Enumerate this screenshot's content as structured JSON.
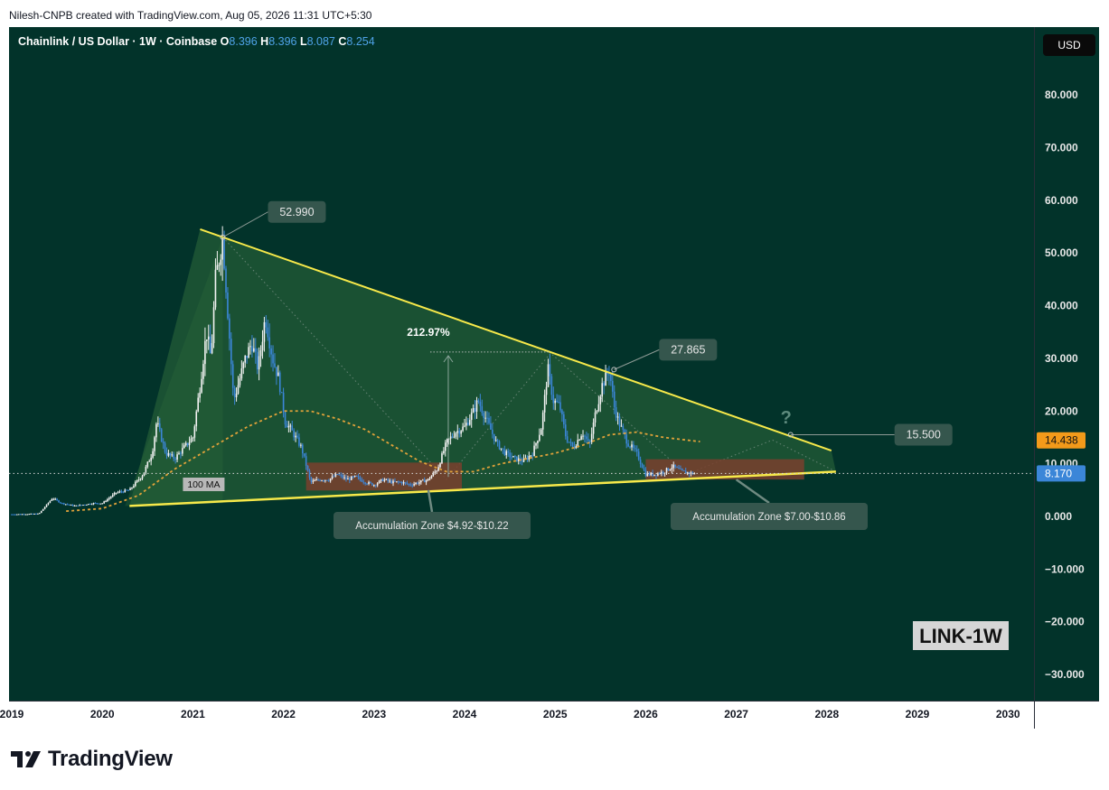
{
  "header": {
    "credit": "Nilesh-CNPB created with TradingView.com, Aug 05, 2026 11:31 UTC+5:30"
  },
  "legend": {
    "symbol": "Chainlink / US Dollar · 1W · Coinbase",
    "o_label": "O",
    "o_value": "8.396",
    "h_label": "H",
    "h_value": "8.396",
    "l_label": "L",
    "l_value": "8.087",
    "c_label": "C",
    "c_value": "8.254"
  },
  "currency_button": "USD",
  "watermark": "LINK-1W",
  "brand": "TradingView",
  "colors": {
    "background": "#02332a",
    "trendline": "#f7e94a",
    "ma": "#e0a23a",
    "up_candle": "#f2f2f2",
    "down_candle": "#3b86d8",
    "zone": "#7a3f2e",
    "last_price": "#3b86d8",
    "ma_price": "#f39a1a"
  },
  "chart_data": {
    "type": "line",
    "title": "Chainlink / US Dollar · 1W · Coinbase",
    "yaxis_ticks": [
      "80.000",
      "70.000",
      "60.000",
      "50.000",
      "40.000",
      "30.000",
      "20.000",
      "10.000",
      "0.000",
      "−10.000",
      "−20.000",
      "−30.000"
    ],
    "xaxis_ticks": [
      "2019",
      "2020",
      "2021",
      "2022",
      "2023",
      "2024",
      "2025",
      "2026",
      "2027",
      "2028",
      "2029",
      "2030"
    ],
    "ylim": [
      -35,
      90
    ],
    "xlim": [
      2019.0,
      2030.45
    ],
    "grid": false,
    "series": [
      {
        "name": "",
        "x": [
          2019.0,
          2019.3,
          2019.45,
          2019.55,
          2019.7,
          2019.9,
          2020.0,
          2020.15,
          2020.3,
          2020.45,
          2020.55,
          2020.6,
          2020.7,
          2020.8,
          2020.9,
          2021.0,
          2021.08,
          2021.15,
          2021.2,
          2021.25,
          2021.33,
          2021.4,
          2021.45,
          2021.5,
          2021.58,
          2021.65,
          2021.72,
          2021.8,
          2021.88,
          2021.95,
          2022.02,
          2022.1,
          2022.2,
          2022.3,
          2022.4,
          2022.5,
          2022.6,
          2022.7,
          2022.8,
          2022.9,
          2023.0,
          2023.1,
          2023.2,
          2023.3,
          2023.4,
          2023.5,
          2023.6,
          2023.7,
          2023.8,
          2023.9,
          2024.0,
          2024.1,
          2024.15,
          2024.25,
          2024.35,
          2024.45,
          2024.55,
          2024.65,
          2024.75,
          2024.85,
          2024.92,
          2024.98,
          2025.05,
          2025.12,
          2025.2,
          2025.3,
          2025.38,
          2025.45,
          2025.52,
          2025.6,
          2025.65,
          2025.7,
          2025.8,
          2025.9,
          2026.0,
          2026.1,
          2026.2,
          2026.3,
          2026.4,
          2026.5,
          2026.55
        ],
        "values": [
          0.4,
          0.5,
          3.5,
          2.5,
          2.0,
          2.5,
          2.5,
          4.5,
          5.0,
          8.0,
          12.0,
          18.0,
          12.0,
          11.0,
          13.0,
          15.0,
          25.0,
          35.0,
          30.0,
          45.0,
          52.99,
          35.0,
          22.0,
          25.0,
          30.0,
          33.0,
          28.0,
          38.0,
          30.0,
          26.0,
          18.0,
          16.0,
          13.0,
          6.5,
          7.0,
          7.0,
          8.0,
          7.0,
          7.5,
          6.5,
          6.0,
          7.0,
          6.5,
          6.5,
          6.0,
          6.5,
          7.0,
          9.0,
          14.0,
          16.0,
          17.0,
          20.0,
          22.0,
          18.0,
          14.0,
          12.0,
          11.0,
          10.5,
          12.0,
          17.0,
          28.0,
          22.0,
          21.0,
          15.0,
          13.0,
          16.0,
          13.5,
          20.0,
          25.0,
          27.86,
          21.0,
          18.0,
          14.0,
          12.0,
          8.0,
          8.0,
          8.5,
          9.5,
          8.5,
          8.2,
          8.17
        ]
      },
      {
        "name": "100 MA",
        "x": [
          2019.6,
          2020.0,
          2020.4,
          2020.8,
          2021.2,
          2021.6,
          2022.0,
          2022.3,
          2022.6,
          2022.9,
          2023.2,
          2023.5,
          2023.8,
          2024.1,
          2024.4,
          2024.7,
          2025.0,
          2025.3,
          2025.6,
          2025.9,
          2026.2,
          2026.6
        ],
        "values": [
          1.0,
          1.5,
          4.0,
          9.0,
          13.0,
          17.0,
          20.0,
          20.0,
          18.5,
          16.5,
          13.5,
          10.5,
          8.5,
          8.5,
          10.0,
          11.0,
          12.0,
          13.5,
          15.5,
          16.0,
          15.0,
          14.2
        ]
      }
    ],
    "annotations": [
      {
        "label": "52.990",
        "x": 2021.33,
        "y": 52.99
      },
      {
        "label": "212.97%",
        "x": 2023.75,
        "y": 31.0
      },
      {
        "label": "27.865",
        "x": 2025.65,
        "y": 27.865
      },
      {
        "label": "15.500",
        "x": 2027.6,
        "y": 15.5
      },
      {
        "label": "?",
        "x": 2027.55,
        "y": 18.5
      },
      {
        "label": "100 MA",
        "x": 2021.05,
        "y": 6.0
      },
      {
        "label": "Accumulation Zone $4.92-$10.22",
        "zone_x": [
          2022.25,
          2023.97
        ],
        "zone_y": [
          4.92,
          10.22
        ]
      },
      {
        "label": "Accumulation Zone $7.00-$10.86",
        "zone_x": [
          2026.0,
          2027.75
        ],
        "zone_y": [
          7.0,
          10.86
        ]
      }
    ],
    "trendlines": [
      {
        "name": "upper",
        "x": [
          2021.08,
          2028.05
        ],
        "y": [
          54.5,
          12.5
        ]
      },
      {
        "name": "lower",
        "x": [
          2020.3,
          2028.1
        ],
        "y": [
          2.0,
          8.5
        ]
      }
    ],
    "price_labels": [
      {
        "value": "14.438",
        "kind": "ma"
      },
      {
        "value": "8.170",
        "kind": "last"
      }
    ]
  }
}
